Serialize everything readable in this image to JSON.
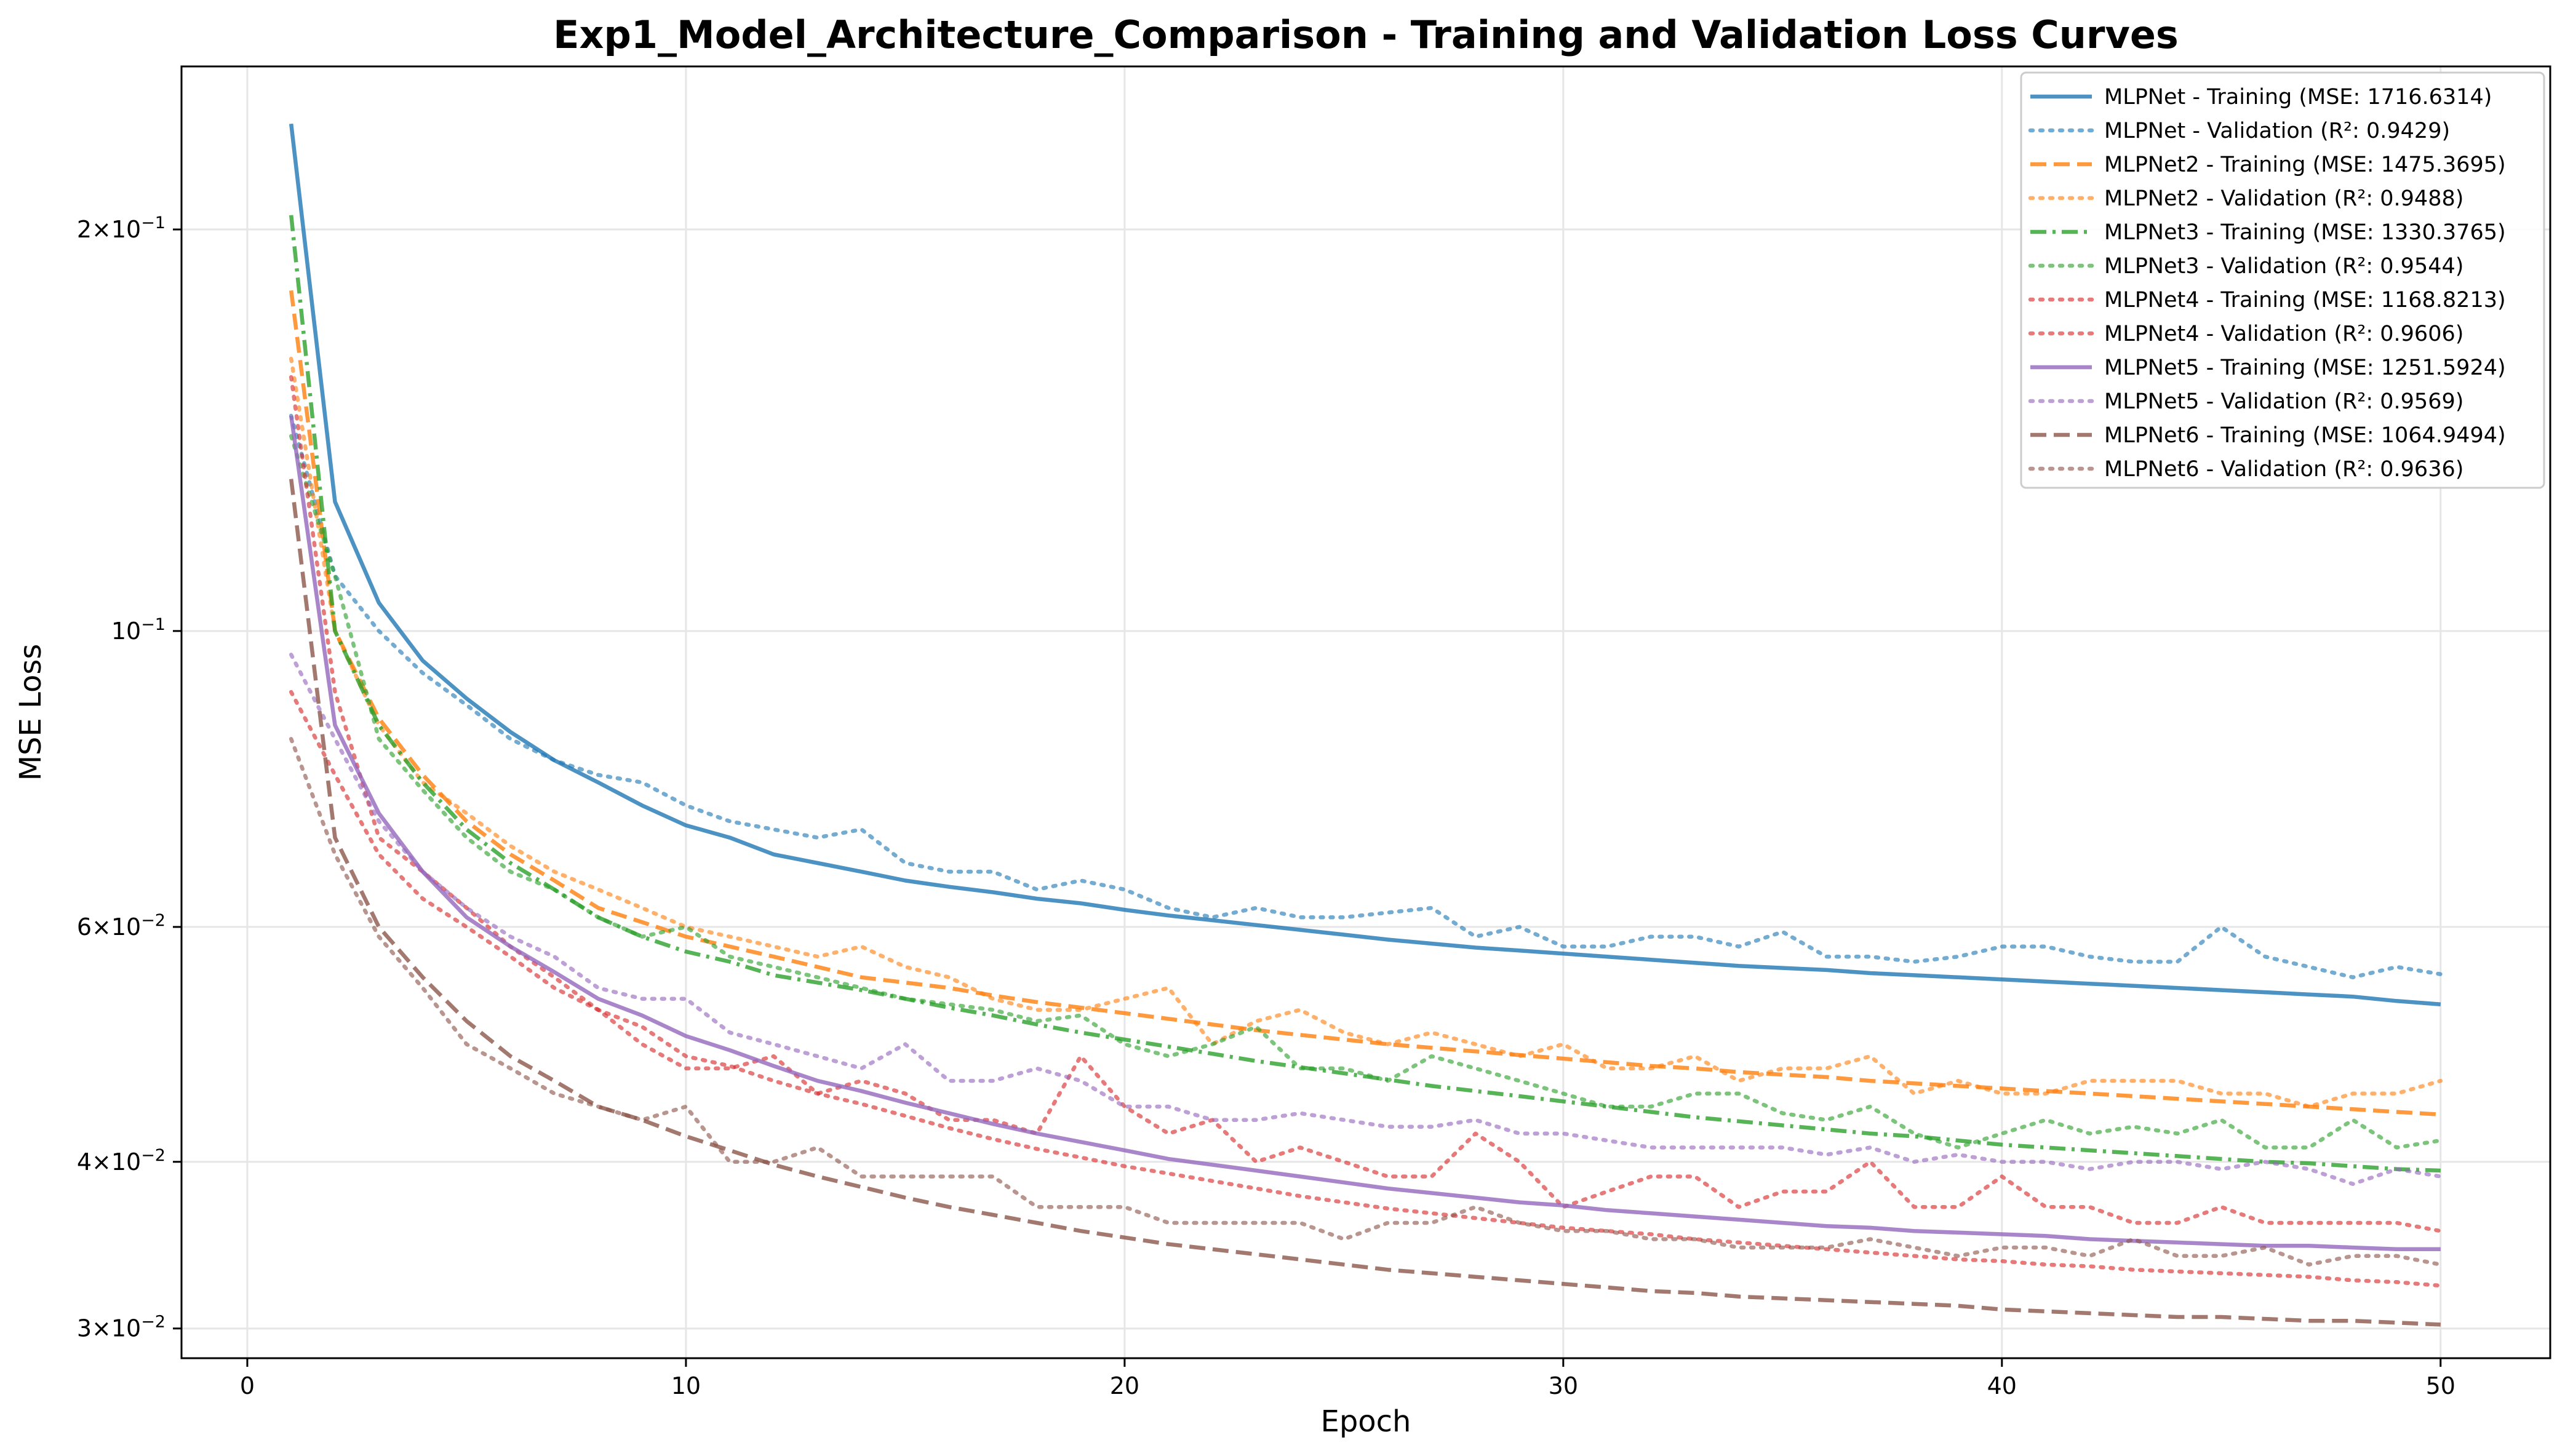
{
  "chart_data": {
    "type": "line",
    "title": "Exp1_Model_Architecture_Comparison - Training and Validation Loss Curves",
    "xlabel": "Epoch",
    "ylabel": "MSE Loss",
    "xlim": [
      -1.5,
      52.5
    ],
    "ylim": [
      0.0285,
      0.265
    ],
    "yscale": "log",
    "grid": true,
    "legend_position": "top-right",
    "x_ticks": [
      0,
      10,
      20,
      30,
      40,
      50
    ],
    "x_tick_labels": [
      "0",
      "10",
      "20",
      "30",
      "40",
      "50"
    ],
    "y_ticks": [
      {
        "value": 0.2,
        "mant": "2",
        "base": "10",
        "exp": "−1"
      },
      {
        "value": 0.1,
        "mant": "",
        "base": "10",
        "exp": "−1"
      },
      {
        "value": 0.06,
        "mant": "6",
        "base": "10",
        "exp": "−2"
      },
      {
        "value": 0.04,
        "mant": "4",
        "base": "10",
        "exp": "−2"
      },
      {
        "value": 0.03,
        "mant": "3",
        "base": "10",
        "exp": "−2"
      }
    ],
    "x": [
      1,
      2,
      3,
      4,
      5,
      6,
      7,
      8,
      9,
      10,
      11,
      12,
      13,
      14,
      15,
      16,
      17,
      18,
      19,
      20,
      21,
      22,
      23,
      24,
      25,
      26,
      27,
      28,
      29,
      30,
      31,
      32,
      33,
      34,
      35,
      36,
      37,
      38,
      39,
      40,
      41,
      42,
      43,
      44,
      45,
      46,
      47,
      48,
      49,
      50
    ],
    "series": [
      {
        "name": "MLPNet - Training (MSE: 1716.6314)",
        "color": "#1f77b4",
        "style": "solid",
        "values": [
          0.24,
          0.125,
          0.105,
          0.095,
          0.089,
          0.084,
          0.08,
          0.077,
          0.074,
          0.0715,
          0.07,
          0.068,
          0.067,
          0.066,
          0.065,
          0.0643,
          0.0637,
          0.063,
          0.0625,
          0.0618,
          0.0612,
          0.0607,
          0.0602,
          0.0597,
          0.0592,
          0.0587,
          0.0583,
          0.0579,
          0.0576,
          0.0573,
          0.057,
          0.0567,
          0.0564,
          0.0561,
          0.0559,
          0.0557,
          0.0554,
          0.0552,
          0.055,
          0.0548,
          0.0546,
          0.0544,
          0.0542,
          0.054,
          0.0538,
          0.0536,
          0.0534,
          0.0532,
          0.0528,
          0.0525
        ]
      },
      {
        "name": "MLPNet - Validation (R²: 0.9429)",
        "color": "#1f77b4",
        "style": "dotted",
        "values": [
          0.145,
          0.11,
          0.1,
          0.093,
          0.088,
          0.083,
          0.08,
          0.078,
          0.077,
          0.074,
          0.072,
          0.071,
          0.07,
          0.071,
          0.067,
          0.066,
          0.066,
          0.064,
          0.065,
          0.064,
          0.062,
          0.061,
          0.062,
          0.061,
          0.061,
          0.0615,
          0.062,
          0.059,
          0.06,
          0.058,
          0.058,
          0.059,
          0.059,
          0.058,
          0.0595,
          0.057,
          0.057,
          0.0565,
          0.057,
          0.058,
          0.058,
          0.057,
          0.0565,
          0.0565,
          0.06,
          0.057,
          0.056,
          0.055,
          0.056,
          0.0553
        ]
      },
      {
        "name": "MLPNet2 - Training (MSE: 1475.3695)",
        "color": "#ff7f0e",
        "style": "dashed",
        "values": [
          0.18,
          0.1,
          0.086,
          0.078,
          0.072,
          0.068,
          0.065,
          0.062,
          0.0605,
          0.059,
          0.058,
          0.057,
          0.056,
          0.055,
          0.0545,
          0.054,
          0.0533,
          0.0527,
          0.0522,
          0.0517,
          0.0512,
          0.0507,
          0.0502,
          0.0498,
          0.0494,
          0.049,
          0.0487,
          0.0484,
          0.0481,
          0.0478,
          0.0475,
          0.0472,
          0.047,
          0.0467,
          0.0465,
          0.0463,
          0.046,
          0.0458,
          0.0456,
          0.0454,
          0.0452,
          0.045,
          0.0448,
          0.0446,
          0.0444,
          0.0442,
          0.044,
          0.0438,
          0.0436,
          0.0434
        ]
      },
      {
        "name": "MLPNet2 - Validation (R²: 0.9488)",
        "color": "#ff7f0e",
        "style": "dotted",
        "values": [
          0.16,
          0.1,
          0.085,
          0.077,
          0.073,
          0.069,
          0.066,
          0.064,
          0.062,
          0.06,
          0.059,
          0.058,
          0.057,
          0.058,
          0.056,
          0.055,
          0.053,
          0.052,
          0.052,
          0.053,
          0.054,
          0.049,
          0.051,
          0.052,
          0.05,
          0.049,
          0.05,
          0.049,
          0.048,
          0.049,
          0.047,
          0.047,
          0.048,
          0.046,
          0.047,
          0.047,
          0.048,
          0.045,
          0.046,
          0.045,
          0.045,
          0.046,
          0.046,
          0.046,
          0.045,
          0.045,
          0.044,
          0.045,
          0.045,
          0.046
        ]
      },
      {
        "name": "MLPNet3 - Training (MSE: 1330.3765)",
        "color": "#2ca02c",
        "style": "dashdot",
        "values": [
          0.205,
          0.1,
          0.085,
          0.077,
          0.071,
          0.067,
          0.064,
          0.061,
          0.059,
          0.0575,
          0.0565,
          0.0552,
          0.0545,
          0.0538,
          0.053,
          0.0522,
          0.0515,
          0.0507,
          0.05,
          0.0494,
          0.0488,
          0.0482,
          0.0476,
          0.0471,
          0.0466,
          0.0461,
          0.0456,
          0.0452,
          0.0448,
          0.0444,
          0.044,
          0.0436,
          0.0432,
          0.0429,
          0.0426,
          0.0423,
          0.042,
          0.0418,
          0.0415,
          0.0412,
          0.041,
          0.0408,
          0.0406,
          0.0404,
          0.0402,
          0.04,
          0.0399,
          0.0397,
          0.0395,
          0.0394
        ]
      },
      {
        "name": "MLPNet3 - Validation (R²: 0.9544)",
        "color": "#2ca02c",
        "style": "dotted",
        "values": [
          0.14,
          0.11,
          0.083,
          0.076,
          0.07,
          0.066,
          0.064,
          0.061,
          0.059,
          0.06,
          0.057,
          0.056,
          0.055,
          0.054,
          0.053,
          0.0525,
          0.052,
          0.051,
          0.0515,
          0.049,
          0.048,
          0.049,
          0.0505,
          0.047,
          0.047,
          0.046,
          0.048,
          0.047,
          0.046,
          0.045,
          0.044,
          0.044,
          0.045,
          0.045,
          0.0435,
          0.043,
          0.044,
          0.042,
          0.041,
          0.042,
          0.043,
          0.042,
          0.0425,
          0.042,
          0.043,
          0.041,
          0.041,
          0.043,
          0.041,
          0.0415
        ]
      },
      {
        "name": "MLPNet4 - Training (MSE: 1168.8213)",
        "color": "#d62728",
        "style": "dotted",
        "values": [
          0.155,
          0.09,
          0.07,
          0.066,
          0.062,
          0.058,
          0.055,
          0.052,
          0.0505,
          0.048,
          0.0472,
          0.046,
          0.045,
          0.0442,
          0.0433,
          0.0424,
          0.0416,
          0.0409,
          0.0403,
          0.0397,
          0.0392,
          0.0387,
          0.0382,
          0.0377,
          0.0373,
          0.0369,
          0.0366,
          0.0363,
          0.036,
          0.0357,
          0.0355,
          0.0353,
          0.035,
          0.0348,
          0.0346,
          0.0344,
          0.0342,
          0.034,
          0.0338,
          0.0337,
          0.0335,
          0.0334,
          0.0332,
          0.0331,
          0.033,
          0.0329,
          0.0328,
          0.0326,
          0.0325,
          0.0323
        ]
      },
      {
        "name": "MLPNet4 - Validation (R²: 0.9606)",
        "color": "#d62728",
        "style": "dotted",
        "values": [
          0.09,
          0.078,
          0.068,
          0.063,
          0.06,
          0.057,
          0.054,
          0.052,
          0.049,
          0.047,
          0.047,
          0.048,
          0.045,
          0.046,
          0.045,
          0.043,
          0.043,
          0.042,
          0.048,
          0.044,
          0.042,
          0.043,
          0.04,
          0.041,
          0.04,
          0.039,
          0.039,
          0.042,
          0.04,
          0.037,
          0.038,
          0.039,
          0.039,
          0.037,
          0.038,
          0.038,
          0.04,
          0.037,
          0.037,
          0.039,
          0.037,
          0.037,
          0.036,
          0.036,
          0.037,
          0.036,
          0.036,
          0.036,
          0.036,
          0.0355
        ]
      },
      {
        "name": "MLPNet5 - Training (MSE: 1251.5924)",
        "color": "#9467bd",
        "style": "solid",
        "values": [
          0.145,
          0.085,
          0.073,
          0.066,
          0.061,
          0.058,
          0.0555,
          0.053,
          0.0515,
          0.0497,
          0.0485,
          0.0472,
          0.046,
          0.0452,
          0.0443,
          0.0435,
          0.0427,
          0.042,
          0.0414,
          0.0408,
          0.0402,
          0.0398,
          0.0394,
          0.039,
          0.0386,
          0.0382,
          0.0379,
          0.0376,
          0.0373,
          0.0371,
          0.0368,
          0.0366,
          0.0364,
          0.0362,
          0.036,
          0.0358,
          0.0357,
          0.0355,
          0.0354,
          0.0353,
          0.0352,
          0.035,
          0.0349,
          0.0348,
          0.0347,
          0.0346,
          0.0346,
          0.0345,
          0.0344,
          0.0344
        ]
      },
      {
        "name": "MLPNet5 - Validation (R²: 0.9569)",
        "color": "#9467bd",
        "style": "dotted",
        "values": [
          0.096,
          0.083,
          0.072,
          0.066,
          0.062,
          0.059,
          0.057,
          0.054,
          0.053,
          0.053,
          0.05,
          0.049,
          0.048,
          0.047,
          0.049,
          0.046,
          0.046,
          0.047,
          0.046,
          0.044,
          0.044,
          0.043,
          0.043,
          0.0435,
          0.043,
          0.0425,
          0.0425,
          0.043,
          0.042,
          0.042,
          0.0415,
          0.041,
          0.041,
          0.041,
          0.041,
          0.0405,
          0.041,
          0.04,
          0.0405,
          0.04,
          0.04,
          0.0395,
          0.04,
          0.04,
          0.0395,
          0.04,
          0.0395,
          0.0385,
          0.0395,
          0.039
        ]
      },
      {
        "name": "MLPNet6 - Training (MSE: 1064.9494)",
        "color": "#8c564b",
        "style": "dashed",
        "values": [
          0.13,
          0.07,
          0.06,
          0.055,
          0.051,
          0.048,
          0.046,
          0.044,
          0.043,
          0.0418,
          0.0408,
          0.0398,
          0.039,
          0.0383,
          0.0376,
          0.037,
          0.0365,
          0.036,
          0.0355,
          0.0351,
          0.0347,
          0.0344,
          0.0341,
          0.0338,
          0.0335,
          0.0332,
          0.033,
          0.0328,
          0.0326,
          0.0324,
          0.0322,
          0.032,
          0.0319,
          0.0317,
          0.0316,
          0.0315,
          0.0314,
          0.0313,
          0.0312,
          0.031,
          0.0309,
          0.0308,
          0.0307,
          0.0306,
          0.0306,
          0.0305,
          0.0304,
          0.0304,
          0.0303,
          0.0302
        ]
      },
      {
        "name": "MLPNet6 - Validation (R²: 0.9636)",
        "color": "#8c564b",
        "style": "dotted",
        "values": [
          0.083,
          0.068,
          0.059,
          0.054,
          0.049,
          0.047,
          0.045,
          0.044,
          0.043,
          0.044,
          0.04,
          0.04,
          0.041,
          0.039,
          0.039,
          0.039,
          0.039,
          0.037,
          0.037,
          0.037,
          0.036,
          0.036,
          0.036,
          0.036,
          0.035,
          0.036,
          0.036,
          0.037,
          0.036,
          0.0355,
          0.0355,
          0.035,
          0.035,
          0.0345,
          0.0345,
          0.0345,
          0.035,
          0.0345,
          0.034,
          0.0345,
          0.0345,
          0.034,
          0.035,
          0.034,
          0.034,
          0.0345,
          0.0335,
          0.034,
          0.034,
          0.0335
        ]
      }
    ]
  }
}
